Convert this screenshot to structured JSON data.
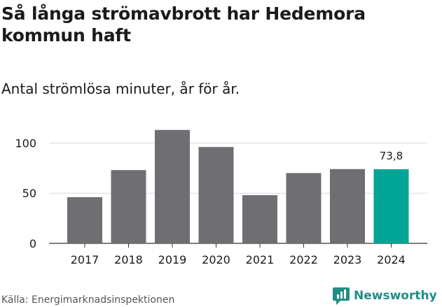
{
  "title": "Så långa strömavbrott har Hedemora kommun haft",
  "subtitle": "Antal strömlösa minuter, år för år.",
  "source": "Källa: Energimarknadsinspektionen",
  "brand": {
    "name": "Newsworthy",
    "icon": "newsworthy-logo-icon",
    "color": "#1f8e86"
  },
  "colors": {
    "bar": "#6f6e73",
    "highlight": "#00a596",
    "grid": "#d9d9d9",
    "axis": "#333333"
  },
  "chart_data": {
    "type": "bar",
    "categories": [
      "2017",
      "2018",
      "2019",
      "2020",
      "2021",
      "2022",
      "2023",
      "2024"
    ],
    "values": [
      46,
      73,
      113,
      96,
      48,
      70,
      74,
      73.8
    ],
    "highlight_index": 7,
    "data_labels": [
      {
        "index": 7,
        "text": "73,8"
      }
    ],
    "yticks": [
      0,
      50,
      100
    ],
    "ylim": [
      0,
      124
    ],
    "grid": true,
    "xlabel": "",
    "ylabel": ""
  }
}
